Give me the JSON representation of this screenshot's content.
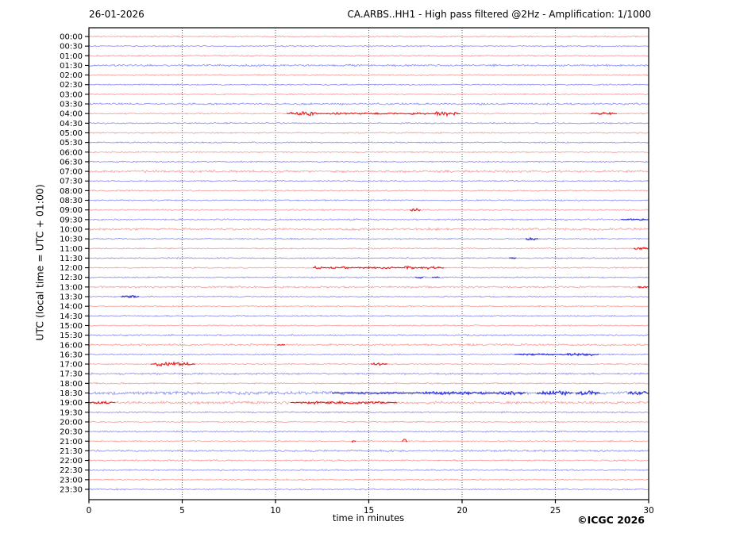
{
  "chart_data": {
    "type": "line",
    "subtype": "helicorder-seismogram",
    "date": "26-01-2026",
    "title": "CA.ARBS..HH1 - High pass filtered @2Hz - Amplification: 1/1000",
    "xlabel": "time in minutes",
    "ylabel": "UTC (local time = UTC + 01:00)",
    "credit": "©ICGC 2026",
    "xlim": [
      0,
      30
    ],
    "xticks": [
      0,
      5,
      10,
      15,
      20,
      25,
      30
    ],
    "grid": "vertical dotted lines at 5-minute intervals",
    "minutes_per_row": 30,
    "row_labels": [
      "00:00",
      "00:30",
      "01:00",
      "01:30",
      "02:00",
      "02:30",
      "03:00",
      "03:30",
      "04:00",
      "04:30",
      "05:00",
      "05:30",
      "06:00",
      "06:30",
      "07:00",
      "07:30",
      "08:00",
      "08:30",
      "09:00",
      "09:30",
      "10:00",
      "10:30",
      "11:00",
      "11:30",
      "12:00",
      "12:30",
      "13:00",
      "13:30",
      "14:00",
      "14:30",
      "15:00",
      "15:30",
      "16:00",
      "16:30",
      "17:00",
      "17:30",
      "18:00",
      "18:30",
      "19:00",
      "19:30",
      "20:00",
      "20:30",
      "21:00",
      "21:30",
      "22:00",
      "22:30",
      "23:00",
      "23:30"
    ],
    "row_color_pattern": [
      "red",
      "blue"
    ],
    "colors": {
      "red_base": "#f49a9a",
      "red_event": "#e81212",
      "blue_base": "#8a8aee",
      "blue_event": "#1a1add",
      "grid": "#444444",
      "frame": "#000000"
    },
    "background_noise_rows": {
      "01:30": 1.5,
      "03:30": 1.4,
      "07:00": 1.8,
      "09:30": 1.2,
      "10:00": 1.7,
      "13:00": 1.5,
      "15:30": 1.2,
      "16:00": 1.5,
      "17:30": 1.3,
      "18:30": 2.4,
      "19:00": 2.0,
      "21:30": 1.4,
      "22:00": 1.3
    },
    "events": [
      {
        "row": "04:00",
        "start": 10.6,
        "end": 12.4,
        "level": "strong"
      },
      {
        "row": "04:00",
        "start": 12.4,
        "end": 17.1,
        "level": "light"
      },
      {
        "row": "04:00",
        "start": 17.1,
        "end": 18.4,
        "level": "medium"
      },
      {
        "row": "04:00",
        "start": 18.4,
        "end": 19.9,
        "level": "strong"
      },
      {
        "row": "04:00",
        "start": 26.9,
        "end": 28.3,
        "level": "medium"
      },
      {
        "row": "09:00",
        "start": 17.2,
        "end": 17.8,
        "level": "medium"
      },
      {
        "row": "09:30",
        "start": 28.5,
        "end": 30.0,
        "level": "light"
      },
      {
        "row": "10:30",
        "start": 23.4,
        "end": 24.1,
        "level": "medium"
      },
      {
        "row": "11:00",
        "start": 29.2,
        "end": 30.0,
        "level": "medium"
      },
      {
        "row": "11:30",
        "start": 22.5,
        "end": 22.9,
        "level": "light"
      },
      {
        "row": "12:00",
        "start": 12.0,
        "end": 12.6,
        "level": "medium"
      },
      {
        "row": "12:00",
        "start": 12.6,
        "end": 13.4,
        "level": "light"
      },
      {
        "row": "12:00",
        "start": 13.4,
        "end": 14.2,
        "level": "medium"
      },
      {
        "row": "12:00",
        "start": 14.2,
        "end": 16.8,
        "level": "light"
      },
      {
        "row": "12:00",
        "start": 16.8,
        "end": 17.6,
        "level": "strong"
      },
      {
        "row": "12:00",
        "start": 17.6,
        "end": 19.0,
        "level": "medium"
      },
      {
        "row": "12:30",
        "start": 17.5,
        "end": 17.9,
        "level": "light"
      },
      {
        "row": "12:30",
        "start": 18.4,
        "end": 18.8,
        "level": "light"
      },
      {
        "row": "13:00",
        "start": 29.4,
        "end": 30.0,
        "level": "light"
      },
      {
        "row": "13:30",
        "start": 1.7,
        "end": 2.7,
        "level": "medium"
      },
      {
        "row": "16:00",
        "start": 10.1,
        "end": 10.5,
        "level": "light"
      },
      {
        "row": "16:30",
        "start": 22.8,
        "end": 25.2,
        "level": "light"
      },
      {
        "row": "16:30",
        "start": 25.2,
        "end": 27.3,
        "level": "medium"
      },
      {
        "row": "17:00",
        "start": 3.3,
        "end": 5.7,
        "level": "strong"
      },
      {
        "row": "17:00",
        "start": 15.1,
        "end": 16.0,
        "level": "medium"
      },
      {
        "row": "18:30",
        "start": 13.0,
        "end": 17.4,
        "level": "light"
      },
      {
        "row": "18:30",
        "start": 17.4,
        "end": 21.8,
        "level": "medium"
      },
      {
        "row": "18:30",
        "start": 21.8,
        "end": 23.4,
        "level": "strong"
      },
      {
        "row": "18:30",
        "start": 24.0,
        "end": 25.9,
        "level": "strong"
      },
      {
        "row": "18:30",
        "start": 26.1,
        "end": 27.4,
        "level": "strong"
      },
      {
        "row": "18:30",
        "start": 28.9,
        "end": 30.0,
        "level": "strong"
      },
      {
        "row": "19:00",
        "start": 0.0,
        "end": 1.4,
        "level": "medium"
      },
      {
        "row": "19:00",
        "start": 10.8,
        "end": 16.5,
        "level": "medium"
      },
      {
        "row": "21:00",
        "start": 14.1,
        "end": 14.3,
        "level": "light"
      },
      {
        "row": "21:00",
        "start": 16.75,
        "end": 17.05,
        "level": "spike"
      }
    ]
  }
}
